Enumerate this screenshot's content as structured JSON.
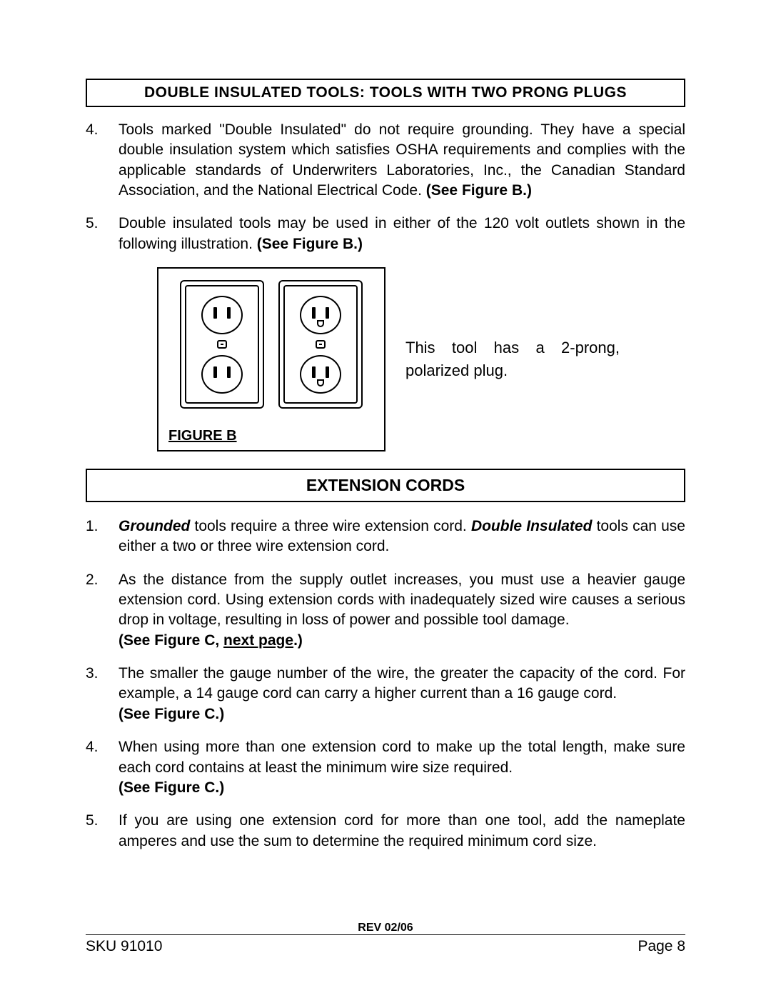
{
  "header1": "DOUBLE INSULATED TOOLS: TOOLS WITH TWO PRONG PLUGS",
  "list1": {
    "item4": {
      "num": "4.",
      "text_a": "Tools marked \"Double Insulated\" do not require grounding.  They have a special double insulation system which satisfies OSHA requirements and complies with the applicable standards of Underwriters Laboratories, Inc., the Canadian Standard Association, and the National Electrical Code.  ",
      "text_b": "(See Figure B.)"
    },
    "item5": {
      "num": "5.",
      "text_a": "Double insulated tools may be used in either of the 120 volt outlets shown in the following illustration.  ",
      "text_b": "(See Figure B.)"
    }
  },
  "figure": {
    "caption": "FIGURE B",
    "side_text": "This tool has a 2-prong, polarized plug."
  },
  "header2": "EXTENSION CORDS",
  "list2": {
    "item1": {
      "num": "1.",
      "a": "Grounded",
      "b": " tools require a three wire extension cord.  ",
      "c": "Double Insulated",
      "d": " tools can use either a two or three wire extension cord."
    },
    "item2": {
      "num": "2.",
      "a": "As the distance from the supply outlet increases, you must use a heavier gauge extension cord.  Using extension cords with inadequately sized wire causes a serious drop in voltage, resulting in loss of power and possible tool damage.  ",
      "b": "(See Figure C, ",
      "c": "next page",
      "d": ".)"
    },
    "item3": {
      "num": "3.",
      "a": "The smaller the gauge number of the wire, the greater the capacity of the cord.  For example, a 14 gauge cord can carry a higher current than a 16 gauge cord.  ",
      "b": "(See Figure C.)"
    },
    "item4": {
      "num": "4.",
      "a": "When using more than one extension cord to make up the total length, make sure each cord contains at least the minimum wire size required.",
      "b": "(See Figure C.)"
    },
    "item5": {
      "num": "5.",
      "a": "If you are using one extension cord for more than one tool, add the nameplate amperes and use the sum to determine the required minimum cord size."
    }
  },
  "footer": {
    "sku": "SKU 91010",
    "rev": "REV 02/06",
    "page": "Page 8"
  }
}
